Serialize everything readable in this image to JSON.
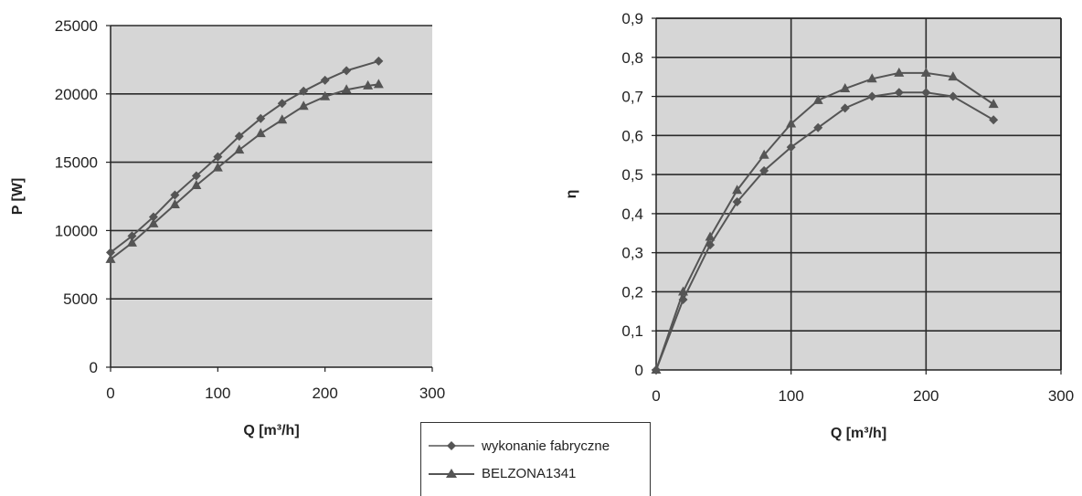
{
  "chart_data": [
    {
      "type": "line",
      "xlabel": "Q [m³/h]",
      "ylabel": "P [W]",
      "xlim": [
        0,
        300
      ],
      "ylim": [
        0,
        25000
      ],
      "xticks": [
        "0",
        "100",
        "200",
        "300"
      ],
      "yticks": [
        "0",
        "5000",
        "10000",
        "15000",
        "20000",
        "25000"
      ],
      "grid": "horizontal",
      "series": [
        {
          "name": "wykonanie fabryczne",
          "marker": "diamond",
          "x": [
            0,
            20,
            40,
            60,
            80,
            100,
            120,
            140,
            160,
            180,
            200,
            220,
            250
          ],
          "values": [
            8400,
            9600,
            11000,
            12600,
            14000,
            15400,
            16900,
            18200,
            19300,
            20200,
            21000,
            21700,
            22400
          ]
        },
        {
          "name": "BELZONA1341",
          "marker": "triangle",
          "x": [
            0,
            20,
            40,
            60,
            80,
            100,
            120,
            140,
            160,
            180,
            200,
            220,
            240,
            250
          ],
          "values": [
            7900,
            9100,
            10500,
            11900,
            13300,
            14600,
            15900,
            17100,
            18100,
            19100,
            19800,
            20300,
            20600,
            20700
          ]
        }
      ]
    },
    {
      "type": "line",
      "xlabel": "Q [m³/h]",
      "ylabel": "η",
      "xlim": [
        0,
        300
      ],
      "ylim": [
        0,
        0.9
      ],
      "xticks": [
        "0",
        "100",
        "200",
        "300"
      ],
      "yticks": [
        "0",
        "0,1",
        "0,2",
        "0,3",
        "0,4",
        "0,5",
        "0,6",
        "0,7",
        "0,8",
        "0,9"
      ],
      "grid": "both",
      "series": [
        {
          "name": "wykonanie fabryczne",
          "marker": "diamond",
          "x": [
            0,
            20,
            40,
            60,
            80,
            100,
            120,
            140,
            160,
            180,
            200,
            220,
            250
          ],
          "values": [
            0,
            0.18,
            0.32,
            0.43,
            0.51,
            0.57,
            0.62,
            0.67,
            0.7,
            0.71,
            0.71,
            0.7,
            0.64
          ]
        },
        {
          "name": "BELZONA1341",
          "marker": "triangle",
          "x": [
            0,
            20,
            40,
            60,
            80,
            100,
            120,
            140,
            160,
            180,
            200,
            220,
            250
          ],
          "values": [
            0,
            0.2,
            0.34,
            0.46,
            0.55,
            0.63,
            0.69,
            0.72,
            0.745,
            0.76,
            0.76,
            0.75,
            0.68
          ]
        }
      ]
    }
  ],
  "legend": {
    "items": [
      {
        "label": "wykonanie fabryczne",
        "marker": "diamond"
      },
      {
        "label": "BELZONA1341",
        "marker": "triangle"
      }
    ]
  },
  "colors": {
    "series_line": "#555555",
    "plot_background": "#d6d6d6",
    "grid": "#2b2b2b",
    "axis": "#222222"
  }
}
